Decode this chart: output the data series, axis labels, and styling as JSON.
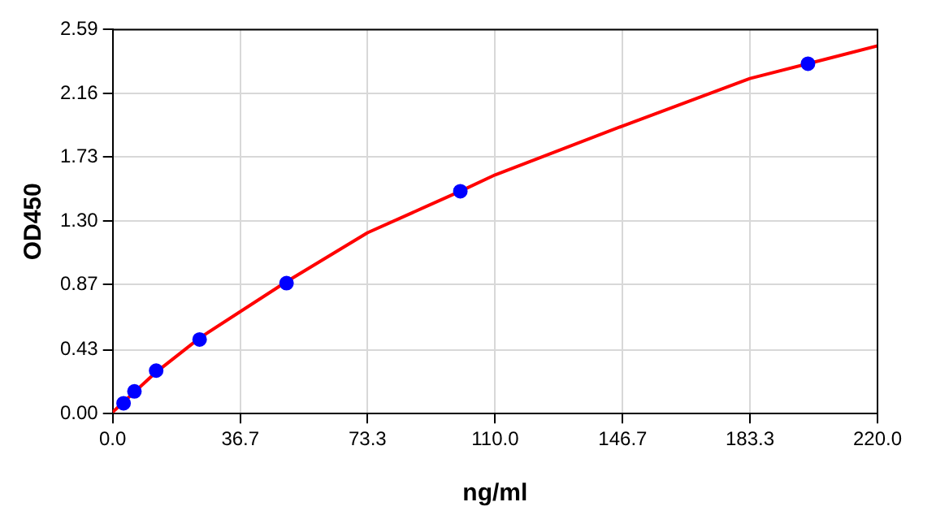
{
  "chart_data": {
    "type": "scatter",
    "xlabel": "ng/ml",
    "ylabel": "OD450",
    "xlim": [
      0,
      220
    ],
    "ylim": [
      0,
      2.59
    ],
    "xticks": [
      {
        "value": 0,
        "label": "0.0"
      },
      {
        "value": 36.7,
        "label": "36.7"
      },
      {
        "value": 73.3,
        "label": "73.3"
      },
      {
        "value": 110,
        "label": "110.0"
      },
      {
        "value": 146.7,
        "label": "146.7"
      },
      {
        "value": 183.3,
        "label": "183.3"
      },
      {
        "value": 220,
        "label": "220.0"
      }
    ],
    "yticks": [
      {
        "value": 0,
        "label": "0.00"
      },
      {
        "value": 0.43,
        "label": "0.43"
      },
      {
        "value": 0.87,
        "label": "0.87"
      },
      {
        "value": 1.3,
        "label": "1.30"
      },
      {
        "value": 1.73,
        "label": "1.73"
      },
      {
        "value": 2.16,
        "label": "2.16"
      },
      {
        "value": 2.59,
        "label": "2.59"
      }
    ],
    "grid": true,
    "legend": false,
    "marker": "circle",
    "series": [
      {
        "type": "line",
        "color": "#ff0000",
        "marker": "none",
        "x": [
          0,
          12.5,
          25,
          50,
          73.3,
          100,
          110,
          146.7,
          183.3,
          220
        ],
        "values": [
          0.01,
          0.28,
          0.51,
          0.89,
          1.22,
          1.5,
          1.61,
          1.94,
          2.26,
          2.48
        ]
      },
      {
        "type": "scatter",
        "color": "#0000ff",
        "x": [
          3.125,
          6.25,
          12.5,
          25,
          50,
          100,
          200
        ],
        "values": [
          0.07,
          0.15,
          0.29,
          0.5,
          0.88,
          1.5,
          2.36
        ]
      }
    ]
  }
}
